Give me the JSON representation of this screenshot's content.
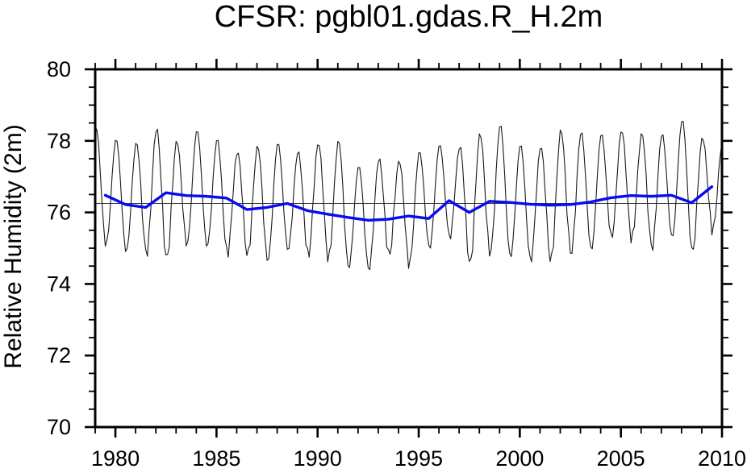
{
  "title": "CFSR: pgbl01.gdas.R_H.2m",
  "chart_data": {
    "type": "line",
    "title": "CFSR: pgbl01.gdas.R_H.2m",
    "xlabel": "",
    "ylabel": "Relative Humidity (2m)",
    "xlim": [
      1979,
      2010
    ],
    "ylim": [
      70,
      80
    ],
    "grid": false,
    "legend": "none",
    "x_major_ticks": [
      1980,
      1985,
      1990,
      1995,
      2000,
      2005,
      2010
    ],
    "x_minor_step": 1,
    "y_major_ticks": [
      70,
      72,
      74,
      76,
      78,
      80
    ],
    "y_minor_step": 0.5,
    "reference_line_y": 76.25,
    "colors": {
      "monthly_line": "#1a1a1a",
      "annual_mean_line": "#0b0bf0",
      "reference_line": "#3a3a3a",
      "frame": "#000000"
    },
    "series": [
      {
        "name": "monthly relative humidity",
        "type": "seasonal-monthly",
        "color": "#1a1a1a",
        "line_width": 1.1,
        "start_year": 1979,
        "peak_phase": 0.04,
        "trough_phase": 0.54,
        "annual_peaks": [
          78.4,
          78.05,
          77.95,
          78.35,
          78.0,
          78.3,
          78.05,
          77.7,
          77.85,
          77.95,
          77.7,
          77.95,
          78.0,
          77.3,
          77.5,
          77.45,
          77.7,
          77.9,
          77.85,
          78.2,
          78.45,
          77.9,
          77.85,
          78.3,
          78.25,
          78.2,
          78.3,
          78.2,
          78.2,
          78.6,
          78.1,
          78.0
        ],
        "annual_troughs": [
          75.1,
          74.9,
          74.85,
          74.7,
          75.1,
          75.05,
          74.85,
          74.8,
          74.65,
          74.95,
          74.8,
          74.7,
          74.45,
          74.4,
          74.8,
          74.55,
          75.0,
          75.3,
          74.55,
          74.85,
          74.75,
          74.65,
          74.65,
          74.85,
          74.95,
          75.3,
          75.25,
          75.0,
          75.3,
          74.9,
          75.5
        ]
      },
      {
        "name": "annual mean",
        "type": "line",
        "color": "#0b0bf0",
        "line_width": 3.4,
        "start_year": 1979,
        "x_offset": 0.5,
        "values": [
          76.48,
          76.22,
          76.14,
          76.55,
          76.47,
          76.45,
          76.4,
          76.08,
          76.14,
          76.25,
          76.05,
          75.95,
          75.86,
          75.78,
          75.81,
          75.9,
          75.83,
          76.33,
          76.0,
          76.31,
          76.28,
          76.23,
          76.2,
          76.22,
          76.29,
          76.41,
          76.47,
          76.45,
          76.48,
          76.27,
          76.72
        ]
      }
    ]
  }
}
